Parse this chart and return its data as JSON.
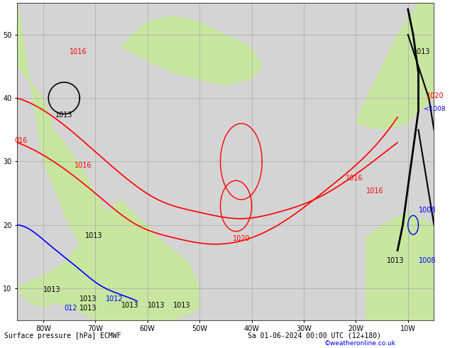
{
  "title_bottom": "Surface pressure [hPa] ECMWF",
  "date_text": "Sa 01-06-2024 00:00 UTC (12+180)",
  "credit": "©weatheronline.co.uk",
  "bg_ocean": "#d4d4d4",
  "bg_land": "#c8e6a0",
  "grid_color": "#aaaaaa",
  "figsize": [
    6.34,
    4.9
  ],
  "dpi": 100,
  "xlim": [
    -85,
    -5
  ],
  "ylim": [
    5,
    55
  ],
  "xticks": [
    -80,
    -70,
    -60,
    -50,
    -40,
    -30,
    -20,
    -10
  ],
  "yticks": [
    10,
    20,
    30,
    40,
    50
  ],
  "xlabel_labels": [
    "80W",
    "70W",
    "60W",
    "50W",
    "40W",
    "30W",
    "20W",
    "10W"
  ],
  "ylabel_labels": [
    "10",
    "20",
    "30",
    "40",
    "50"
  ]
}
